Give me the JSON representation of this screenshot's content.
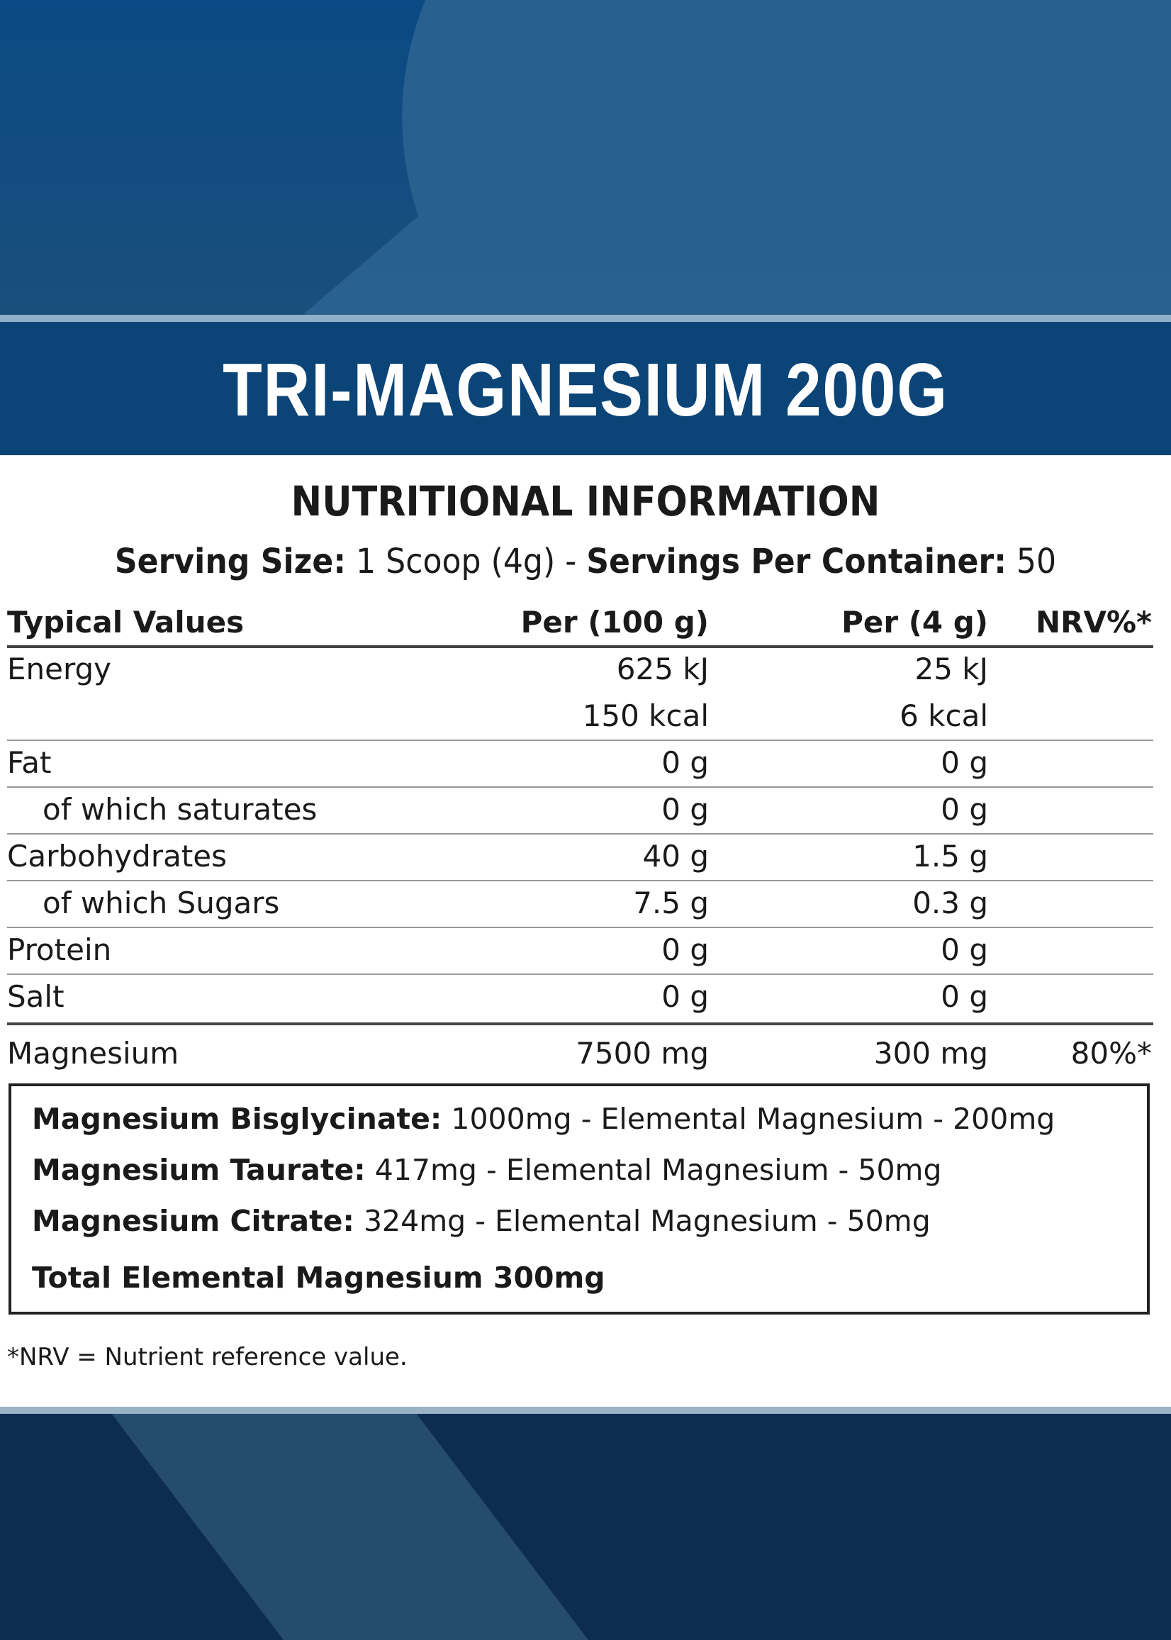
{
  "header": {
    "title": "TRI-MAGNESIUM 200G"
  },
  "heading": "NUTRITIONAL INFORMATION",
  "serving": {
    "size_label": "Serving Size:",
    "size": "1 Scoop (4g) -",
    "servings_label": "Servings Per Container:",
    "servings": "50"
  },
  "table": {
    "columns": [
      "Typical Values",
      "Per (100 g)",
      "Per (4 g)",
      "NRV%*"
    ],
    "rows": [
      {
        "cells": [
          "Energy",
          "625 kJ",
          "25 kJ",
          null
        ]
      },
      {
        "cells": [
          null,
          "150 kcal",
          "6 kcal",
          null
        ],
        "continued": true
      },
      {
        "cells": [
          "Fat",
          "0 g",
          "0 g",
          null
        ]
      },
      {
        "cells": [
          "of which saturates",
          "0 g",
          "0 g",
          null
        ],
        "indent": true
      },
      {
        "cells": [
          "Carbohydrates",
          "40 g",
          "1.5 g",
          null
        ]
      },
      {
        "cells": [
          "of which Sugars",
          "7.5 g",
          "0.3 g",
          null
        ],
        "indent": true
      },
      {
        "cells": [
          "Protein",
          "0 g",
          "0 g",
          null
        ]
      },
      {
        "cells": [
          "Salt",
          "0 g",
          "0 g",
          null
        ]
      },
      {
        "cells": [
          "Magnesium",
          "7500 mg",
          "300 mg",
          "80%*"
        ],
        "thick_rule": true
      }
    ]
  },
  "sources": [
    {
      "name": "Magnesium Bisglycinate:",
      "detail": "1000mg - Elemental Magnesium - 200mg"
    },
    {
      "name": "Magnesium Taurate:",
      "detail": "417mg - Elemental Magnesium - 50mg"
    },
    {
      "name": "Magnesium Citrate:",
      "detail": "324mg - Elemental Magnesium - 50mg"
    }
  ],
  "total": "Total Elemental Magnesium 300mg",
  "footnote": "*NRV = Nutrient reference value."
}
